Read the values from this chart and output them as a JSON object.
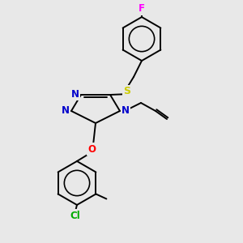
{
  "background_color": "#e8e8e8",
  "bond_color": "#000000",
  "atom_colors": {
    "N": "#0000cc",
    "S": "#cccc00",
    "O": "#ff0000",
    "F": "#ff00ff",
    "Cl": "#00aa00",
    "C": "#000000"
  },
  "figsize": [
    3.0,
    3.0
  ],
  "dpi": 100,
  "lw": 1.4,
  "font_size": 8.5
}
